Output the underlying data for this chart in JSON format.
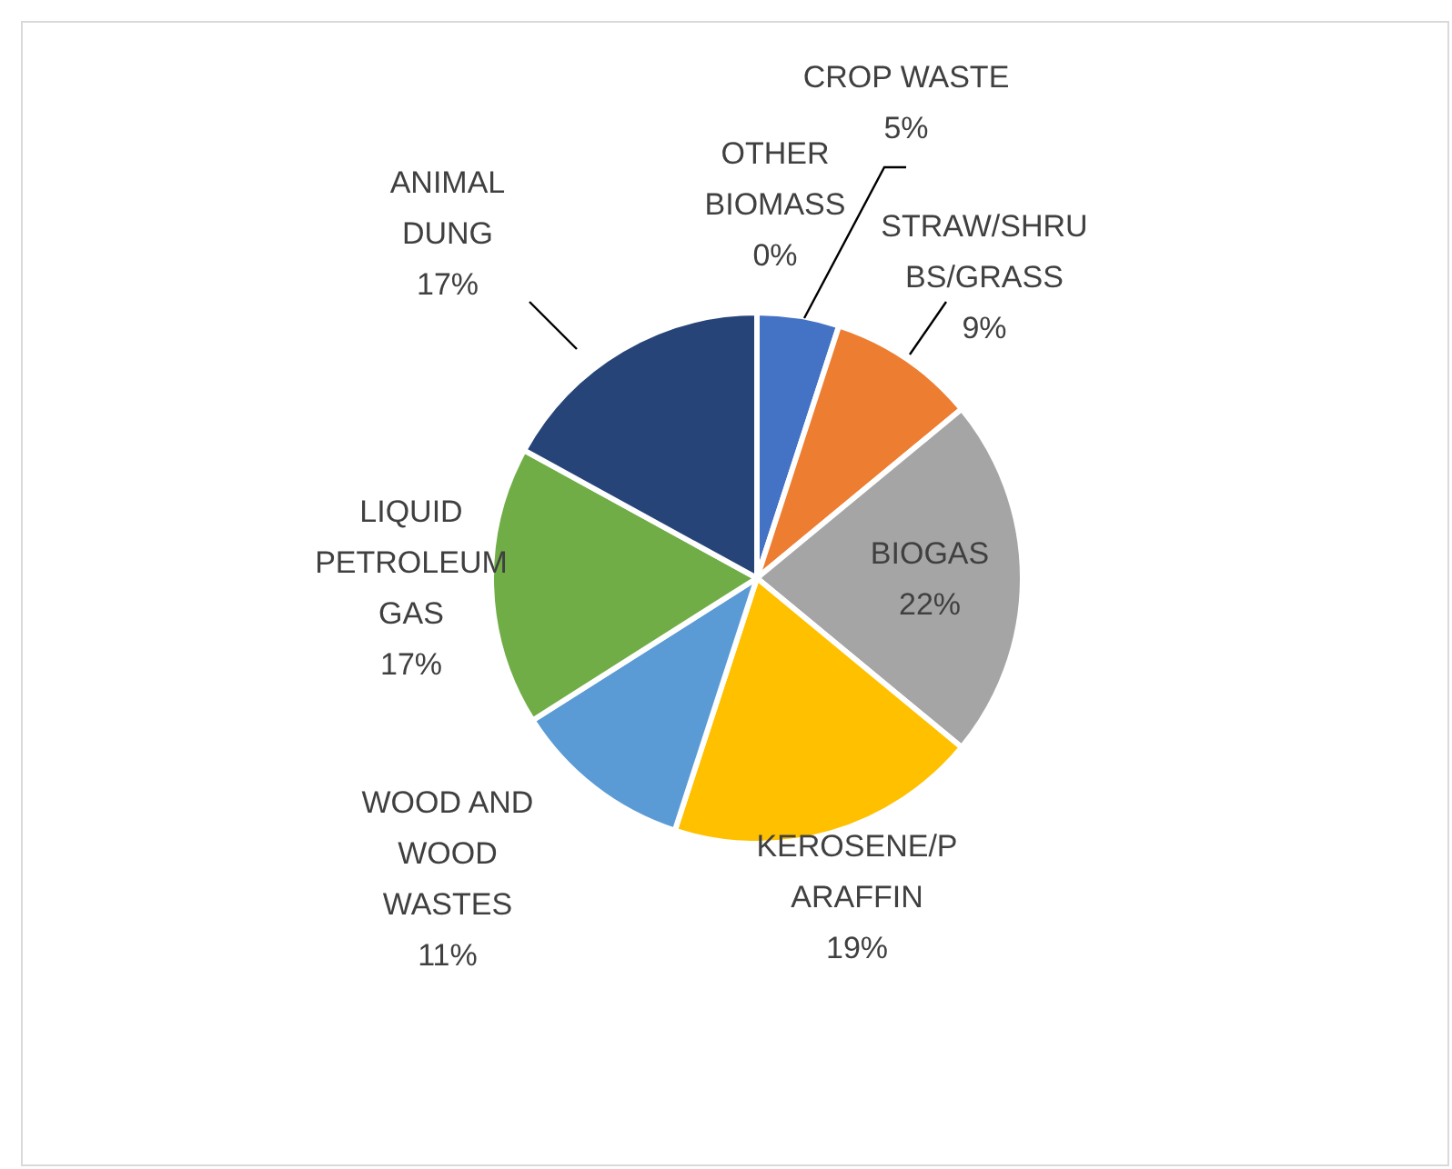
{
  "chart_data": {
    "type": "pie",
    "categories": [
      "CROP WASTE",
      "STRAW/SHRUBS/GRASS",
      "BIOGAS",
      "KEROSENE/PARAFFIN",
      "WOOD AND WOOD WASTES",
      "LIQUID PETROLEUM GAS",
      "ANIMAL DUNG",
      "OTHER BIOMASS"
    ],
    "values": [
      5,
      9,
      22,
      19,
      11,
      17,
      17,
      0
    ],
    "value_labels": [
      "5%",
      "9%",
      "22%",
      "19%",
      "11%",
      "17%",
      "17%",
      "0%"
    ],
    "colors": [
      "#4472c4",
      "#ed7d31",
      "#a5a5a5",
      "#ffc000",
      "#5b9bd5",
      "#70ad47",
      "#264478",
      "#9e480e"
    ],
    "legend": false
  }
}
